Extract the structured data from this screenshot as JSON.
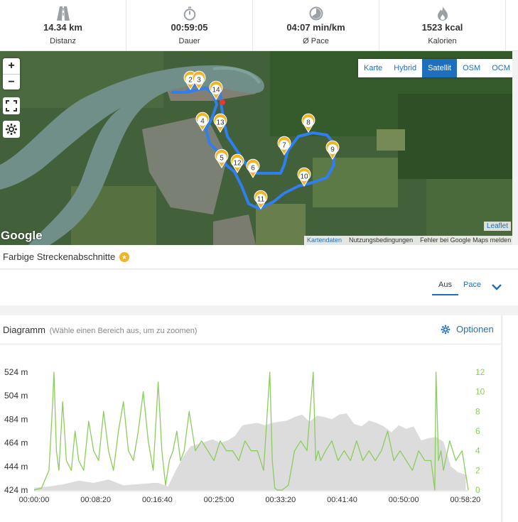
{
  "stats": [
    {
      "icon": "road-icon",
      "value": "14.34 km",
      "label": "Distanz"
    },
    {
      "icon": "stopwatch-icon",
      "value": "00:59:05",
      "label": "Dauer"
    },
    {
      "icon": "pace-gauge-icon",
      "value": "04:07 min/km",
      "label": "Ø Pace"
    },
    {
      "icon": "flame-icon",
      "value": "1523 kcal",
      "label": "Kalorien"
    }
  ],
  "map": {
    "zoom_in": "+",
    "zoom_out": "−",
    "layers": [
      "Karte",
      "Hybrid",
      "Satellit",
      "OSM",
      "OCM"
    ],
    "active_layer": "Satellit",
    "google_logo": "Google",
    "leaflet": "Leaflet",
    "attribution": {
      "data": "Kartendaten",
      "terms": "Nutzungsbedingungen",
      "report": "Fehler bei Google Maps melden"
    },
    "km_markers": [
      "2",
      "3",
      "14",
      "4",
      "13",
      "5",
      "12",
      "6",
      "7",
      "8",
      "9",
      "10",
      "11"
    ],
    "route_color": "#2f7ff0",
    "pin_color": "#f0b429"
  },
  "segments": {
    "title": "Farbige Streckenabschnitte",
    "options": [
      "Aus",
      "Pace"
    ],
    "selected": "Aus"
  },
  "diagram": {
    "title": "Diagramm",
    "hint": "(Wähle einen Bereich aus, um zu zoomen)",
    "options_label": "Optionen"
  },
  "chart_data": {
    "type": "line",
    "x_tick_labels": [
      "00:00:00",
      "00:08:20",
      "00:16:40",
      "00:25:00",
      "00:33:20",
      "00:41:40",
      "00:50:00",
      "00:58:20"
    ],
    "y_left_tick_labels": [
      "524 m",
      "504 m",
      "484 m",
      "464 m",
      "444 m",
      "424 m"
    ],
    "y_right_tick_labels": [
      "12",
      "10",
      "8",
      "6",
      "4",
      "2",
      "0"
    ],
    "xlim_seconds": [
      0,
      3500
    ],
    "ylim_left_m": [
      424,
      524
    ],
    "ylim_right": [
      0,
      12
    ],
    "series": [
      {
        "kind": "area",
        "axis": "left",
        "color": "#dcdcdc",
        "x_seconds": [
          0,
          120,
          240,
          360,
          480,
          600,
          720,
          840,
          960,
          1000,
          1080,
          1140,
          1200,
          1260,
          1320,
          1380,
          1440,
          1500,
          1560,
          1620,
          1680,
          1740,
          1800,
          1860,
          1920,
          1980,
          2040,
          2100,
          2160,
          2220,
          2280,
          2340,
          2400,
          2460,
          2520,
          2580,
          2640,
          2700,
          2760,
          2820,
          2880,
          2940,
          3000,
          3060,
          3120,
          3180,
          3240,
          3300,
          3360,
          3420,
          3480
        ],
        "values": [
          426,
          427,
          429,
          432,
          430,
          433,
          428,
          429,
          430,
          430,
          427,
          440,
          452,
          461,
          463,
          465,
          467,
          464,
          466,
          470,
          479,
          480,
          481,
          479,
          481,
          482,
          483,
          486,
          488,
          482,
          487,
          486,
          484,
          488,
          489,
          480,
          478,
          483,
          481,
          478,
          473,
          479,
          476,
          478,
          466,
          468,
          469,
          465,
          444,
          439,
          437
        ]
      },
      {
        "kind": "line",
        "axis": "right",
        "color": "#8ccc5c",
        "x_seconds": [
          0,
          60,
          120,
          150,
          160,
          180,
          200,
          230,
          260,
          300,
          330,
          360,
          400,
          440,
          480,
          520,
          560,
          600,
          640,
          680,
          720,
          760,
          800,
          840,
          880,
          920,
          960,
          1000,
          1030,
          1060,
          1090,
          1120,
          1150,
          1180,
          1210,
          1250,
          1300,
          1350,
          1400,
          1450,
          1500,
          1550,
          1600,
          1650,
          1700,
          1750,
          1800,
          1850,
          1900,
          1920,
          1940,
          1960,
          2000,
          2050,
          2100,
          2150,
          2200,
          2250,
          2270,
          2290,
          2310,
          2350,
          2400,
          2450,
          2500,
          2550,
          2600,
          2650,
          2700,
          2750,
          2800,
          2850,
          2900,
          2950,
          3000,
          3050,
          3100,
          3150,
          3200,
          3230,
          3240,
          3260,
          3280,
          3300,
          3350,
          3400,
          3450,
          3500
        ],
        "values": [
          0,
          0.2,
          2,
          9,
          12,
          4,
          2,
          9,
          3,
          2,
          6,
          3,
          2,
          7,
          4,
          3,
          8,
          4,
          2,
          6,
          9,
          4,
          3,
          6,
          10,
          5,
          2,
          11,
          4,
          0.5,
          3,
          4,
          6,
          3,
          4,
          8,
          4,
          5,
          4,
          3,
          5,
          4,
          4,
          3,
          5,
          4,
          4,
          2,
          12,
          3,
          0.2,
          0,
          0,
          0.5,
          4,
          5,
          4,
          12,
          3,
          4,
          3,
          4,
          5,
          3,
          4,
          3,
          5,
          3,
          4,
          3,
          4,
          6,
          3,
          4,
          3,
          2,
          4,
          3,
          3,
          0,
          12,
          3,
          4,
          2,
          5,
          3,
          4,
          0
        ]
      }
    ]
  }
}
